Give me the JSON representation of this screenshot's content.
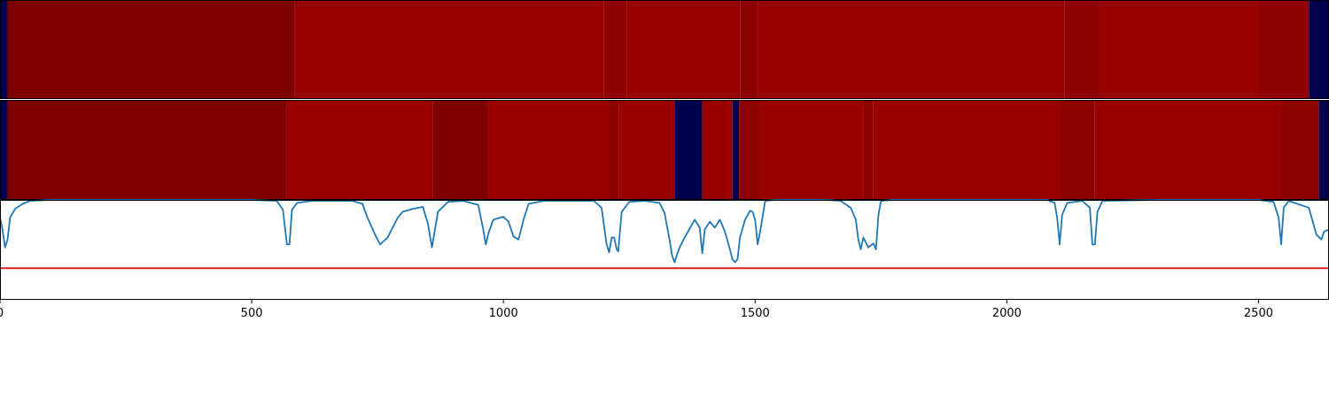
{
  "colors": {
    "dark_red": "#7f0000",
    "red": "#990000",
    "mid_red": "#8c0000",
    "navy": "#000050",
    "line": "#1f77b4",
    "threshold": "#e41a1c"
  },
  "chart_data": [
    {
      "type": "heatmap",
      "title": "",
      "xlim": [
        0,
        2640
      ],
      "segments": [
        {
          "start": 0,
          "end": 15,
          "color": "navy"
        },
        {
          "start": 15,
          "end": 585,
          "color": "dark_red"
        },
        {
          "start": 585,
          "end": 1200,
          "color": "red"
        },
        {
          "start": 1200,
          "end": 1245,
          "color": "mid_red"
        },
        {
          "start": 1245,
          "end": 1470,
          "color": "red"
        },
        {
          "start": 1470,
          "end": 1505,
          "color": "mid_red"
        },
        {
          "start": 1505,
          "end": 2115,
          "color": "red"
        },
        {
          "start": 2115,
          "end": 2185,
          "color": "mid_red"
        },
        {
          "start": 2185,
          "end": 2500,
          "color": "red"
        },
        {
          "start": 2500,
          "end": 2600,
          "color": "mid_red"
        },
        {
          "start": 2600,
          "end": 2640,
          "color": "navy"
        }
      ]
    },
    {
      "type": "heatmap",
      "title": "",
      "xlim": [
        0,
        2640
      ],
      "segments": [
        {
          "start": 0,
          "end": 15,
          "color": "navy"
        },
        {
          "start": 15,
          "end": 570,
          "color": "dark_red"
        },
        {
          "start": 570,
          "end": 860,
          "color": "red"
        },
        {
          "start": 860,
          "end": 968,
          "color": "dark_red"
        },
        {
          "start": 968,
          "end": 1210,
          "color": "red"
        },
        {
          "start": 1210,
          "end": 1230,
          "color": "mid_red"
        },
        {
          "start": 1230,
          "end": 1340,
          "color": "red"
        },
        {
          "start": 1340,
          "end": 1395,
          "color": "navy"
        },
        {
          "start": 1395,
          "end": 1455,
          "color": "red"
        },
        {
          "start": 1455,
          "end": 1468,
          "color": "navy"
        },
        {
          "start": 1468,
          "end": 1510,
          "color": "mid_red"
        },
        {
          "start": 1510,
          "end": 1715,
          "color": "red"
        },
        {
          "start": 1715,
          "end": 1735,
          "color": "mid_red"
        },
        {
          "start": 1735,
          "end": 2105,
          "color": "red"
        },
        {
          "start": 2105,
          "end": 2175,
          "color": "mid_red"
        },
        {
          "start": 2175,
          "end": 2545,
          "color": "red"
        },
        {
          "start": 2545,
          "end": 2620,
          "color": "mid_red"
        },
        {
          "start": 2620,
          "end": 2640,
          "color": "navy"
        }
      ]
    },
    {
      "type": "line",
      "title": "",
      "xlabel": "",
      "ylabel": "",
      "xlim": [
        0,
        2640
      ],
      "ylim": [
        0,
        1
      ],
      "grid": false,
      "threshold": 0.31,
      "xticks": [
        "0",
        "500",
        "1000",
        "1500",
        "2000",
        "2500"
      ],
      "xtick_values": [
        0,
        500,
        1000,
        1500,
        2000,
        2500
      ],
      "series": [
        {
          "x": [
            0,
            5,
            10,
            15,
            20,
            30,
            45,
            60,
            100,
            200,
            300,
            400,
            500,
            550,
            562,
            570,
            575,
            580,
            590,
            620,
            700,
            720,
            730,
            745,
            755,
            770,
            790,
            800,
            820,
            840,
            850,
            858,
            862,
            870,
            890,
            920,
            950,
            960,
            965,
            970,
            980,
            1000,
            1010,
            1020,
            1030,
            1040,
            1050,
            1080,
            1150,
            1180,
            1195,
            1205,
            1210,
            1215,
            1220,
            1225,
            1228,
            1235,
            1250,
            1280,
            1310,
            1320,
            1330,
            1335,
            1340,
            1345,
            1350,
            1360,
            1380,
            1390,
            1395,
            1400,
            1410,
            1420,
            1430,
            1440,
            1450,
            1455,
            1460,
            1465,
            1470,
            1480,
            1490,
            1495,
            1500,
            1505,
            1510,
            1520,
            1540,
            1600,
            1640,
            1670,
            1690,
            1700,
            1705,
            1710,
            1715,
            1725,
            1735,
            1740,
            1745,
            1750,
            1770,
            1850,
            2000,
            2080,
            2095,
            2100,
            2105,
            2110,
            2120,
            2150,
            2165,
            2170,
            2175,
            2180,
            2190,
            2300,
            2500,
            2530,
            2540,
            2545,
            2550,
            2560,
            2600,
            2615,
            2625,
            2630,
            2640
          ],
          "y": [
            0.82,
            0.7,
            0.52,
            0.6,
            0.82,
            0.91,
            0.96,
            0.99,
            1.0,
            1.0,
            1.0,
            1.0,
            1.0,
            0.99,
            0.9,
            0.55,
            0.55,
            0.9,
            0.97,
            0.99,
            0.99,
            0.96,
            0.82,
            0.65,
            0.55,
            0.62,
            0.82,
            0.88,
            0.91,
            0.93,
            0.76,
            0.52,
            0.64,
            0.88,
            0.98,
            0.99,
            0.95,
            0.7,
            0.55,
            0.66,
            0.8,
            0.83,
            0.78,
            0.63,
            0.6,
            0.8,
            0.96,
            0.99,
            0.99,
            0.99,
            0.92,
            0.55,
            0.47,
            0.62,
            0.62,
            0.5,
            0.48,
            0.88,
            0.98,
            0.99,
            0.97,
            0.87,
            0.6,
            0.44,
            0.37,
            0.45,
            0.52,
            0.62,
            0.8,
            0.72,
            0.46,
            0.7,
            0.78,
            0.72,
            0.8,
            0.68,
            0.5,
            0.4,
            0.37,
            0.4,
            0.62,
            0.8,
            0.89,
            0.88,
            0.8,
            0.55,
            0.68,
            0.99,
            1.0,
            1.0,
            1.0,
            0.99,
            0.92,
            0.8,
            0.6,
            0.5,
            0.62,
            0.52,
            0.56,
            0.5,
            0.85,
            0.99,
            1.0,
            1.0,
            1.0,
            1.0,
            0.97,
            0.82,
            0.55,
            0.85,
            0.97,
            0.99,
            0.92,
            0.55,
            0.55,
            0.88,
            0.99,
            1.0,
            1.0,
            0.98,
            0.82,
            0.55,
            0.92,
            0.99,
            0.92,
            0.65,
            0.6,
            0.68,
            0.7
          ]
        }
      ]
    }
  ]
}
